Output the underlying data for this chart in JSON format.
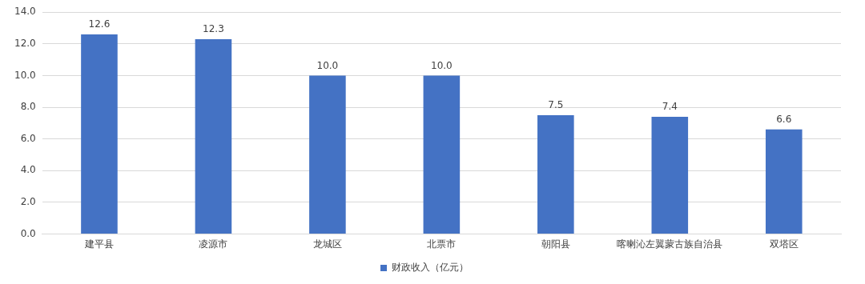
{
  "chart_data": {
    "type": "bar",
    "categories": [
      "建平县",
      "凌源市",
      "龙城区",
      "北票市",
      "朝阳县",
      "喀喇沁左翼蒙古族自治县",
      "双塔区"
    ],
    "series": [
      {
        "name": "财政收入（亿元）",
        "color": "#4472c4",
        "values": [
          12.6,
          12.3,
          10.0,
          10.0,
          7.5,
          7.4,
          6.6
        ],
        "value_labels": [
          "12.6",
          "12.3",
          "10.0",
          "10.0",
          "7.5",
          "7.4",
          "6.6"
        ]
      }
    ],
    "ylim": [
      0,
      14
    ],
    "yticks": [
      {
        "value": 0,
        "label": "0.0"
      },
      {
        "value": 2,
        "label": "2.0"
      },
      {
        "value": 4,
        "label": "4.0"
      },
      {
        "value": 6,
        "label": "6.0"
      },
      {
        "value": 8,
        "label": "8.0"
      },
      {
        "value": 10,
        "label": "10.0"
      },
      {
        "value": 12,
        "label": "12.0"
      },
      {
        "value": 14,
        "label": "14.0"
      }
    ],
    "grid": "y",
    "legend": "bottom"
  }
}
